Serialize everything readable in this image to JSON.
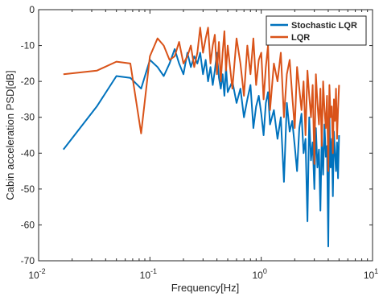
{
  "chart_data": {
    "type": "line",
    "title": "",
    "xlabel": "Frequency[Hz]",
    "ylabel": "Cabin acceleration PSD[dB]",
    "xscale": "log",
    "xlim": [
      0.01,
      10
    ],
    "ylim": [
      -70,
      0
    ],
    "x_ticks": [
      0.01,
      0.1,
      1,
      10
    ],
    "x_tick_labels": [
      {
        "base": "10",
        "exp": "-2"
      },
      {
        "base": "10",
        "exp": "-1"
      },
      {
        "base": "10",
        "exp": "0"
      },
      {
        "base": "10",
        "exp": "1"
      }
    ],
    "y_ticks": [
      0,
      -10,
      -20,
      -30,
      -40,
      -50,
      -60,
      -70
    ],
    "y_tick_labels": [
      "0",
      "-10",
      "-20",
      "-30",
      "-40",
      "-50",
      "-60",
      "-70"
    ],
    "grid": false,
    "legend_position": "top-right",
    "series": [
      {
        "name": "Stochastic LQR",
        "color": "#0072BD",
        "x": [
          0.0167,
          0.0333,
          0.05,
          0.0667,
          0.0833,
          0.1,
          0.117,
          0.133,
          0.15,
          0.167,
          0.183,
          0.2,
          0.217,
          0.233,
          0.25,
          0.267,
          0.283,
          0.3,
          0.317,
          0.333,
          0.35,
          0.367,
          0.383,
          0.4,
          0.417,
          0.433,
          0.45,
          0.467,
          0.483,
          0.5,
          0.55,
          0.6,
          0.65,
          0.7,
          0.75,
          0.8,
          0.85,
          0.9,
          0.95,
          1.0,
          1.05,
          1.1,
          1.15,
          1.2,
          1.3,
          1.4,
          1.5,
          1.6,
          1.7,
          1.8,
          1.9,
          2.0,
          2.1,
          2.2,
          2.3,
          2.4,
          2.5,
          2.6,
          2.7,
          2.8,
          2.9,
          3.0,
          3.1,
          3.2,
          3.3,
          3.4,
          3.5,
          3.6,
          3.7,
          3.8,
          3.9,
          4.0,
          4.1,
          4.2,
          4.3,
          4.4,
          4.5,
          4.6,
          4.7,
          4.8,
          4.9,
          5.0
        ],
        "values": [
          -39,
          -27,
          -18.5,
          -19,
          -22,
          -14,
          -16,
          -18.5,
          -15,
          -11,
          -15,
          -18,
          -12,
          -16,
          -13,
          -15,
          -12,
          -18,
          -14,
          -20,
          -16,
          -21,
          -17,
          -12,
          -19,
          -22,
          -18,
          -24,
          -16,
          -23,
          -20,
          -26,
          -22,
          -30,
          -25,
          -21,
          -33,
          -27,
          -24,
          -29,
          -35,
          -26,
          -23,
          -32,
          -28,
          -36,
          -30,
          -48,
          -26,
          -34,
          -31,
          -38,
          -45,
          -33,
          -29,
          -40,
          -36,
          -59,
          -30,
          -42,
          -37,
          -50,
          -33,
          -44,
          -39,
          -56,
          -35,
          -46,
          -32,
          -41,
          -38,
          -66,
          -30,
          -44,
          -36,
          -52,
          -34,
          -40,
          -45,
          -37,
          -47,
          -35
        ]
      },
      {
        "name": "LQR",
        "color": "#D95319",
        "x": [
          0.0167,
          0.0333,
          0.05,
          0.0667,
          0.0833,
          0.1,
          0.117,
          0.133,
          0.15,
          0.167,
          0.183,
          0.2,
          0.217,
          0.233,
          0.25,
          0.267,
          0.283,
          0.3,
          0.317,
          0.333,
          0.35,
          0.367,
          0.383,
          0.4,
          0.417,
          0.433,
          0.45,
          0.467,
          0.483,
          0.5,
          0.55,
          0.6,
          0.65,
          0.7,
          0.75,
          0.8,
          0.85,
          0.9,
          0.95,
          1.0,
          1.05,
          1.1,
          1.15,
          1.2,
          1.3,
          1.4,
          1.5,
          1.6,
          1.7,
          1.8,
          1.9,
          2.0,
          2.1,
          2.2,
          2.3,
          2.4,
          2.5,
          2.6,
          2.7,
          2.8,
          2.9,
          3.0,
          3.1,
          3.2,
          3.3,
          3.4,
          3.5,
          3.6,
          3.7,
          3.8,
          3.9,
          4.0,
          4.1,
          4.2,
          4.3,
          4.4,
          4.5,
          4.6,
          4.7,
          4.8,
          4.9,
          5.0
        ],
        "values": [
          -18,
          -17,
          -14.5,
          -15,
          -34.5,
          -13,
          -8,
          -10,
          -14,
          -13,
          -9,
          -15,
          -13,
          -10,
          -16,
          -12,
          -5,
          -12,
          -8,
          -5,
          -15,
          -10,
          -7,
          -18,
          -9,
          -20,
          -12,
          -6,
          -17,
          -10,
          -22,
          -8,
          -15,
          -24,
          -10,
          -18,
          -8,
          -21,
          -14,
          -12,
          -25,
          -16,
          -10,
          -28,
          -15,
          -20,
          -12,
          -30,
          -18,
          -14,
          -24,
          -33,
          -16,
          -22,
          -28,
          -20,
          -35,
          -17,
          -24,
          -30,
          -21,
          -43,
          -18,
          -26,
          -32,
          -22,
          -38,
          -20,
          -28,
          -33,
          -24,
          -45,
          -21,
          -30,
          -27,
          -40,
          -25,
          -31,
          -22,
          -36,
          -28,
          -21
        ]
      }
    ]
  }
}
